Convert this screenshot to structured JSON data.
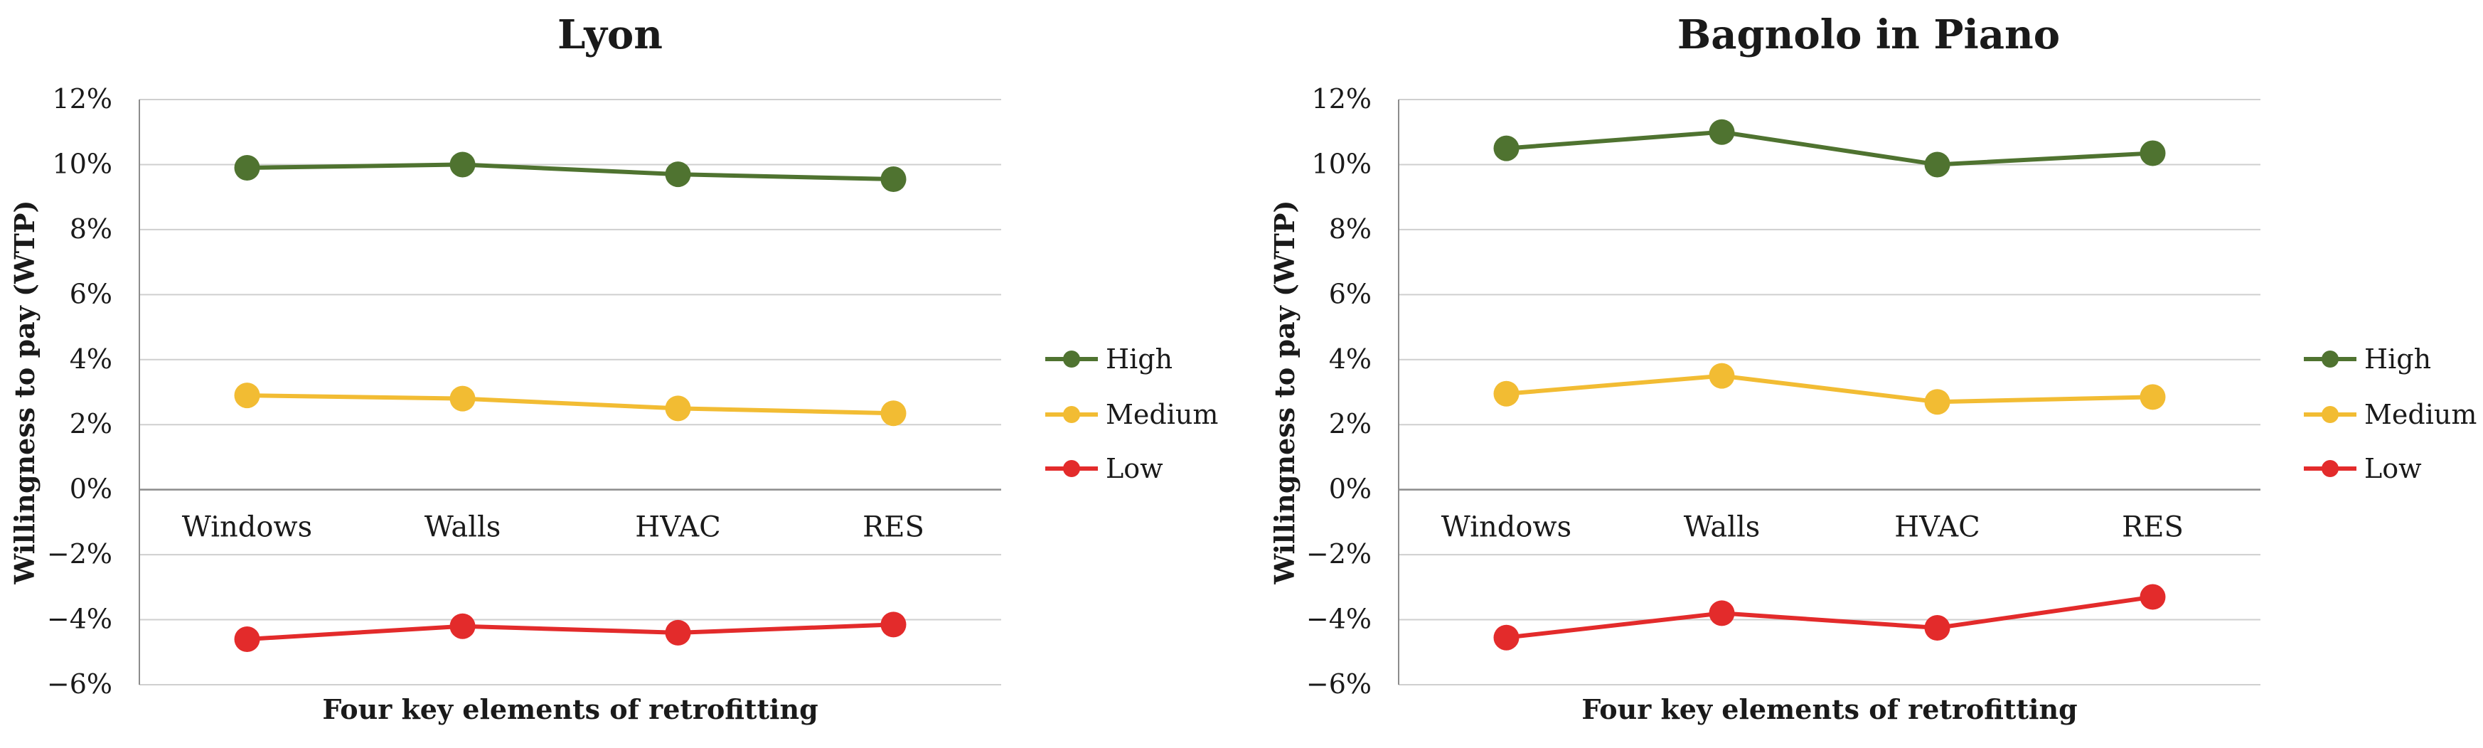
{
  "colors": {
    "High": "#4f7330",
    "Medium": "#f2bc33",
    "Low": "#e32b2b",
    "grid": "#cfcfcf",
    "axis": "#8c8c8c",
    "text": "#1a1a1a"
  },
  "chart_data": [
    {
      "type": "line",
      "title": "Lyon",
      "xlabel": "Four key elements of retrofitting",
      "ylabel": "Willingness to pay  (WTP)",
      "categories": [
        "Windows",
        "Walls",
        "HVAC",
        "RES"
      ],
      "ylim": [
        -6,
        12
      ],
      "yticks": [
        -6,
        -4,
        -2,
        0,
        2,
        4,
        6,
        8,
        10,
        12
      ],
      "ytick_labels": [
        "−6%",
        "−4%",
        "−2%",
        "0%",
        "2%",
        "4%",
        "6%",
        "8%",
        "10%",
        "12%"
      ],
      "legend_position": "right",
      "series": [
        {
          "name": "High",
          "values": [
            9.9,
            10.0,
            9.7,
            9.55
          ]
        },
        {
          "name": "Medium",
          "values": [
            2.9,
            2.8,
            2.5,
            2.35
          ]
        },
        {
          "name": "Low",
          "values": [
            -4.6,
            -4.2,
            -4.4,
            -4.15
          ]
        }
      ]
    },
    {
      "type": "line",
      "title": "Bagnolo in Piano",
      "xlabel": "Four key elements of retrofitting",
      "ylabel": "Willingness to pay  (WTP)",
      "categories": [
        "Windows",
        "Walls",
        "HVAC",
        "RES"
      ],
      "ylim": [
        -6,
        12
      ],
      "yticks": [
        -6,
        -4,
        -2,
        0,
        2,
        4,
        6,
        8,
        10,
        12
      ],
      "ytick_labels": [
        "−6%",
        "−4%",
        "−2%",
        "0%",
        "2%",
        "4%",
        "6%",
        "8%",
        "10%",
        "12%"
      ],
      "legend_position": "right",
      "series": [
        {
          "name": "High",
          "values": [
            10.5,
            11.0,
            10.0,
            10.35
          ]
        },
        {
          "name": "Medium",
          "values": [
            2.95,
            3.5,
            2.7,
            2.85
          ]
        },
        {
          "name": "Low",
          "values": [
            -4.55,
            -3.8,
            -4.25,
            -3.3
          ]
        }
      ]
    }
  ]
}
